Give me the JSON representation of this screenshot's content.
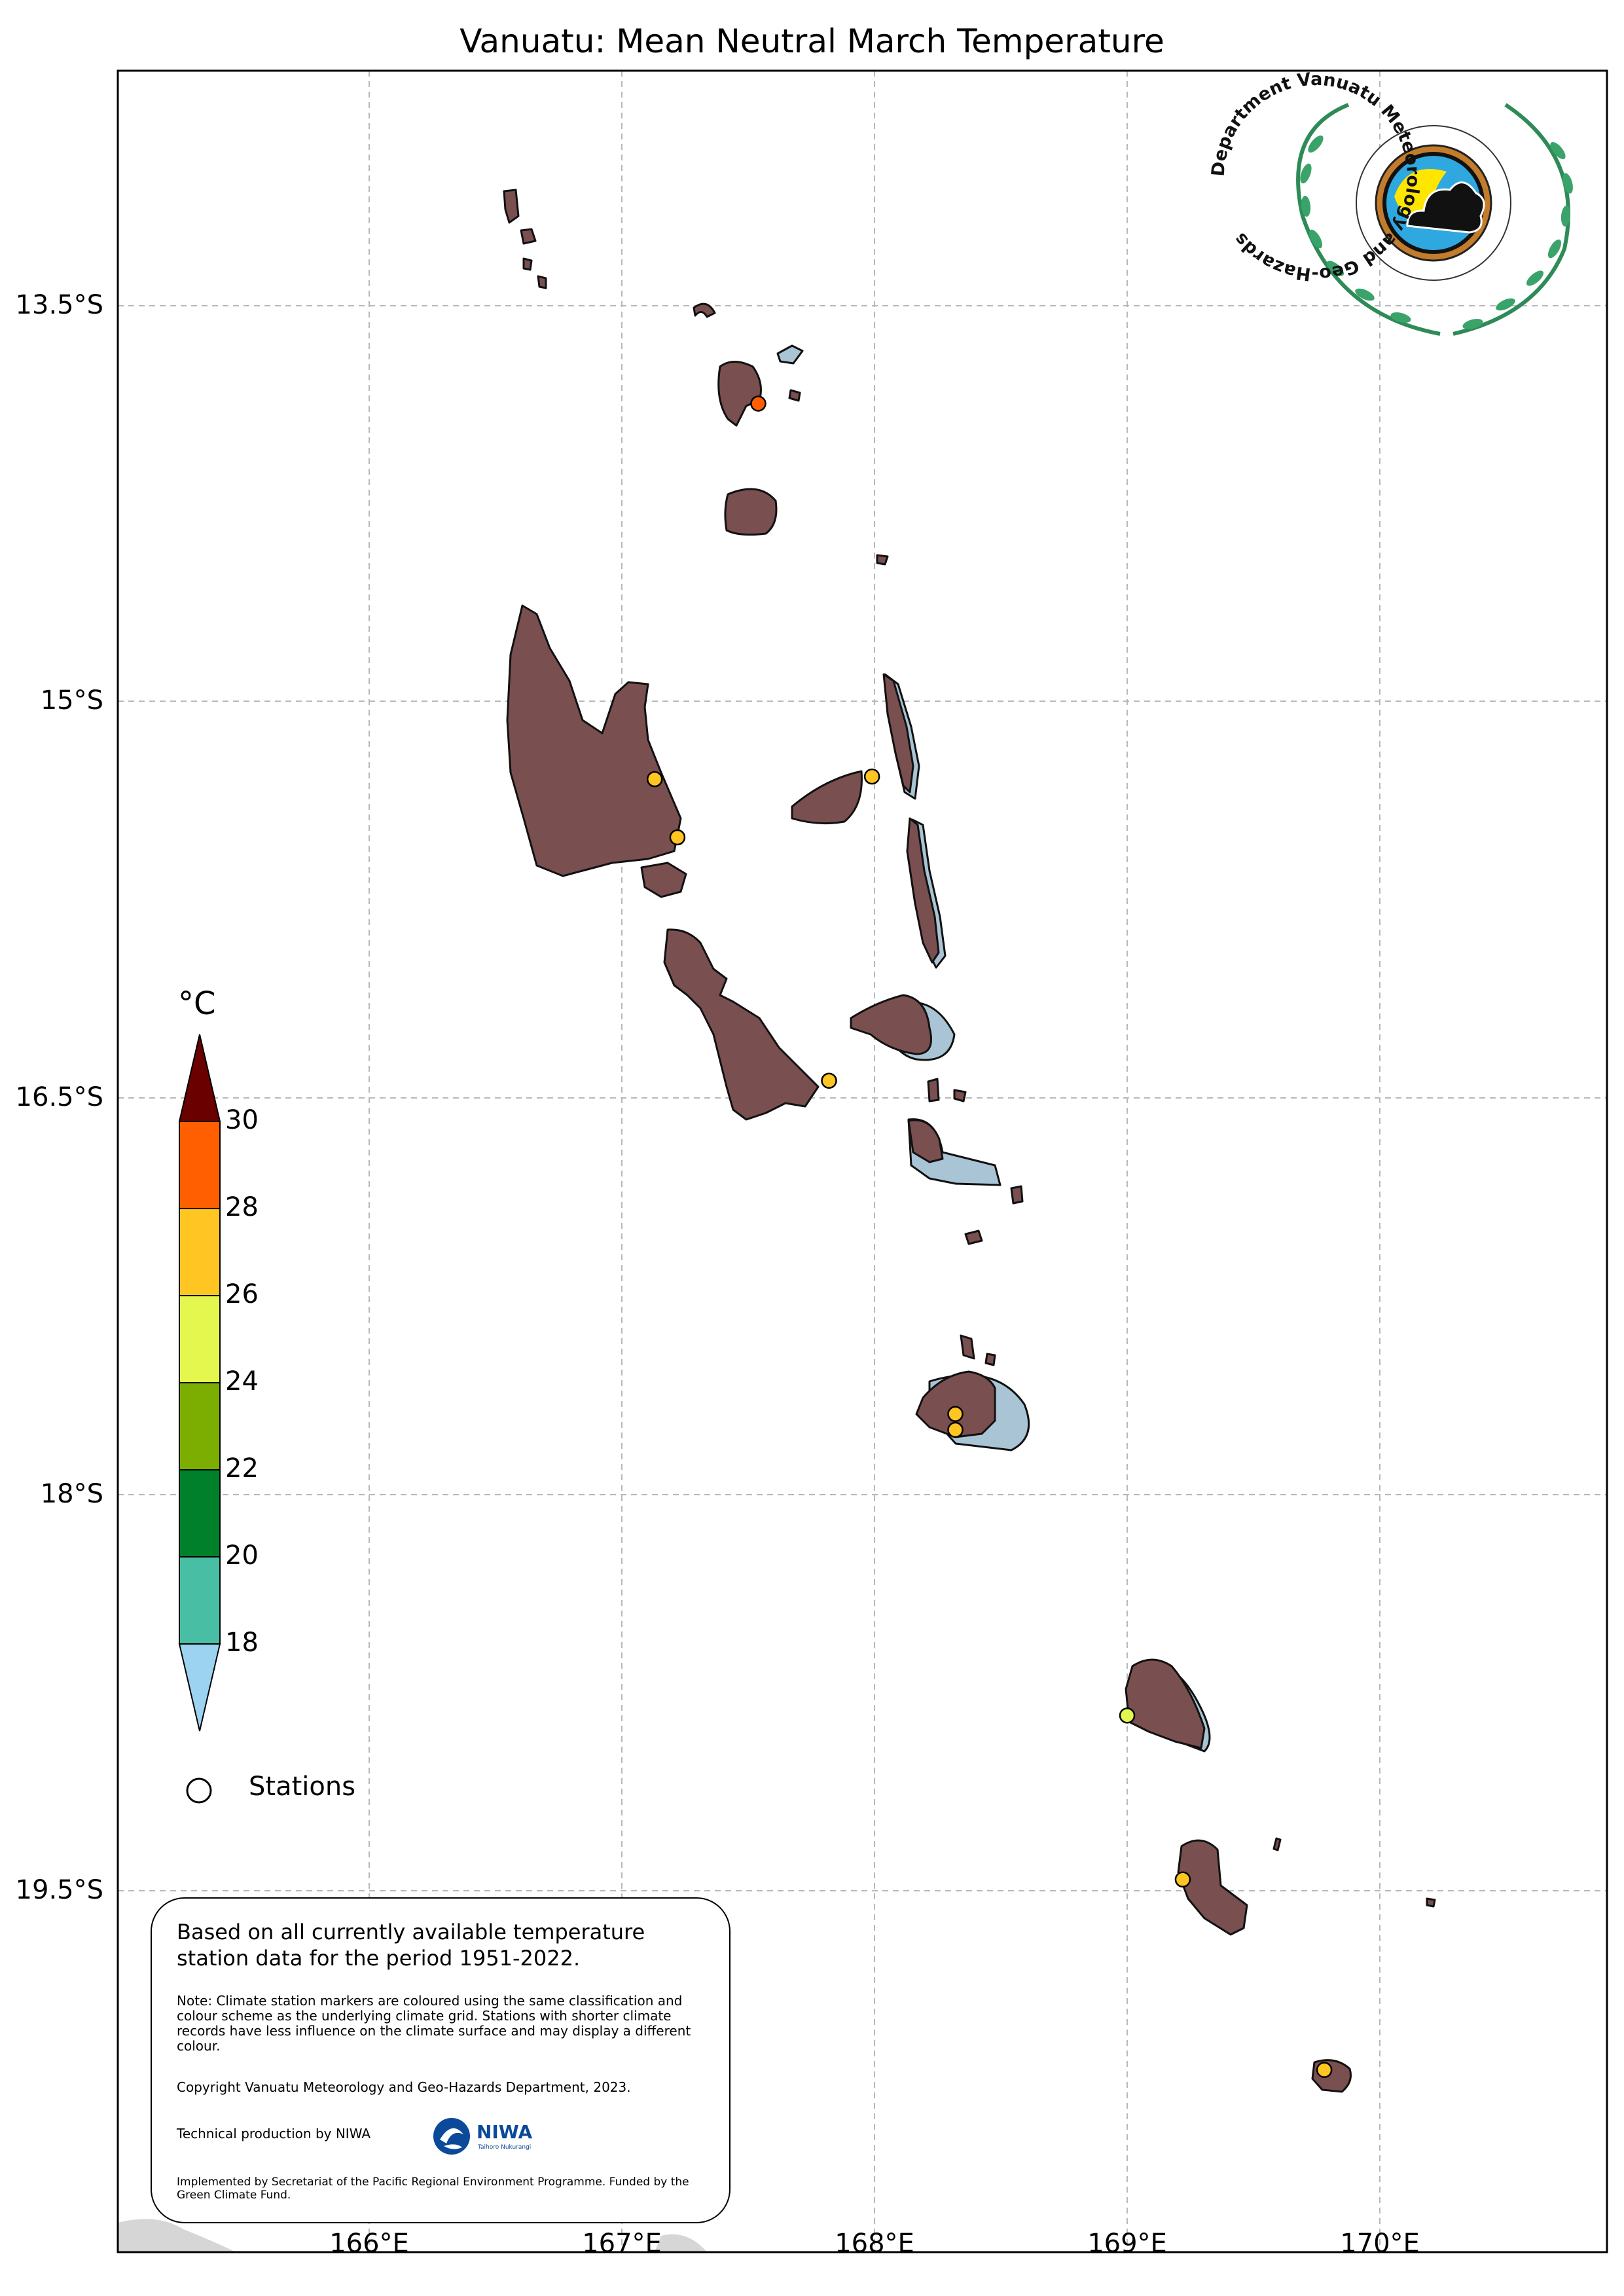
{
  "title": "Vanuatu: Mean Neutral March Temperature",
  "axes": {
    "latitudes": [
      "13.5°S",
      "15°S",
      "16.5°S",
      "18°S",
      "19.5°S"
    ],
    "longitudes": [
      "166°E",
      "167°E",
      "168°E",
      "169°E",
      "170°E"
    ]
  },
  "colorbar": {
    "unit": "°C",
    "ticks": [
      "30",
      "28",
      "26",
      "24",
      "22",
      "20",
      "18"
    ],
    "colors": {
      "above_30": "#6b0000",
      "28_30": "#ff5f00",
      "26_28": "#ffc522",
      "24_26": "#e3f74f",
      "22_24": "#7bae00",
      "20_22": "#00802a",
      "18_20": "#48bfa5",
      "below_18": "#9bd3f0"
    }
  },
  "legend": {
    "stations_label": "Stations"
  },
  "stations": [
    {
      "lon": 167.54,
      "lat": -13.87,
      "color": "#ff5f00"
    },
    {
      "lon": 167.13,
      "lat": -15.29,
      "color": "#ffc522"
    },
    {
      "lon": 167.22,
      "lat": -15.51,
      "color": "#ffc522"
    },
    {
      "lon": 167.99,
      "lat": -15.28,
      "color": "#ffc522"
    },
    {
      "lon": 167.82,
      "lat": -16.43,
      "color": "#ffc522"
    },
    {
      "lon": 168.32,
      "lat": -17.69,
      "color": "#ffc522"
    },
    {
      "lon": 168.32,
      "lat": -17.75,
      "color": "#ffc522"
    },
    {
      "lon": 169.0,
      "lat": -18.83,
      "color": "#e3f74f"
    },
    {
      "lon": 169.22,
      "lat": -19.45,
      "color": "#ffc522"
    },
    {
      "lon": 169.78,
      "lat": -20.17,
      "color": "#ffc522"
    }
  ],
  "info": {
    "main": "Based on all currently available temperature station data for the period 1951-2022.",
    "note": "Note: Climate station markers are coloured using the same classification and colour scheme as the underlying climate grid. Stations with shorter climate records have less influence on the climate surface and may display a different colour.",
    "copyright": "Copyright Vanuatu Meteorology and Geo-Hazards Department, 2023.",
    "technical": "Technical production by NIWA",
    "niwa_logo_text": "NIWA",
    "niwa_tagline": "Taihoro Nukurangi",
    "implemented": "Implemented by Secretariat of the Pacific Regional Environment Programme. Funded by the Green Climate Fund."
  },
  "logo": {
    "ring_text": "Department Vanuatu Meteorology and Geo-Hazards"
  },
  "colors": {
    "land": "#7a4f50",
    "shallow_water": "#a9c4d4",
    "coast": "#111111",
    "grid": "#b5b5b5",
    "laurel": "#2e8b57"
  }
}
